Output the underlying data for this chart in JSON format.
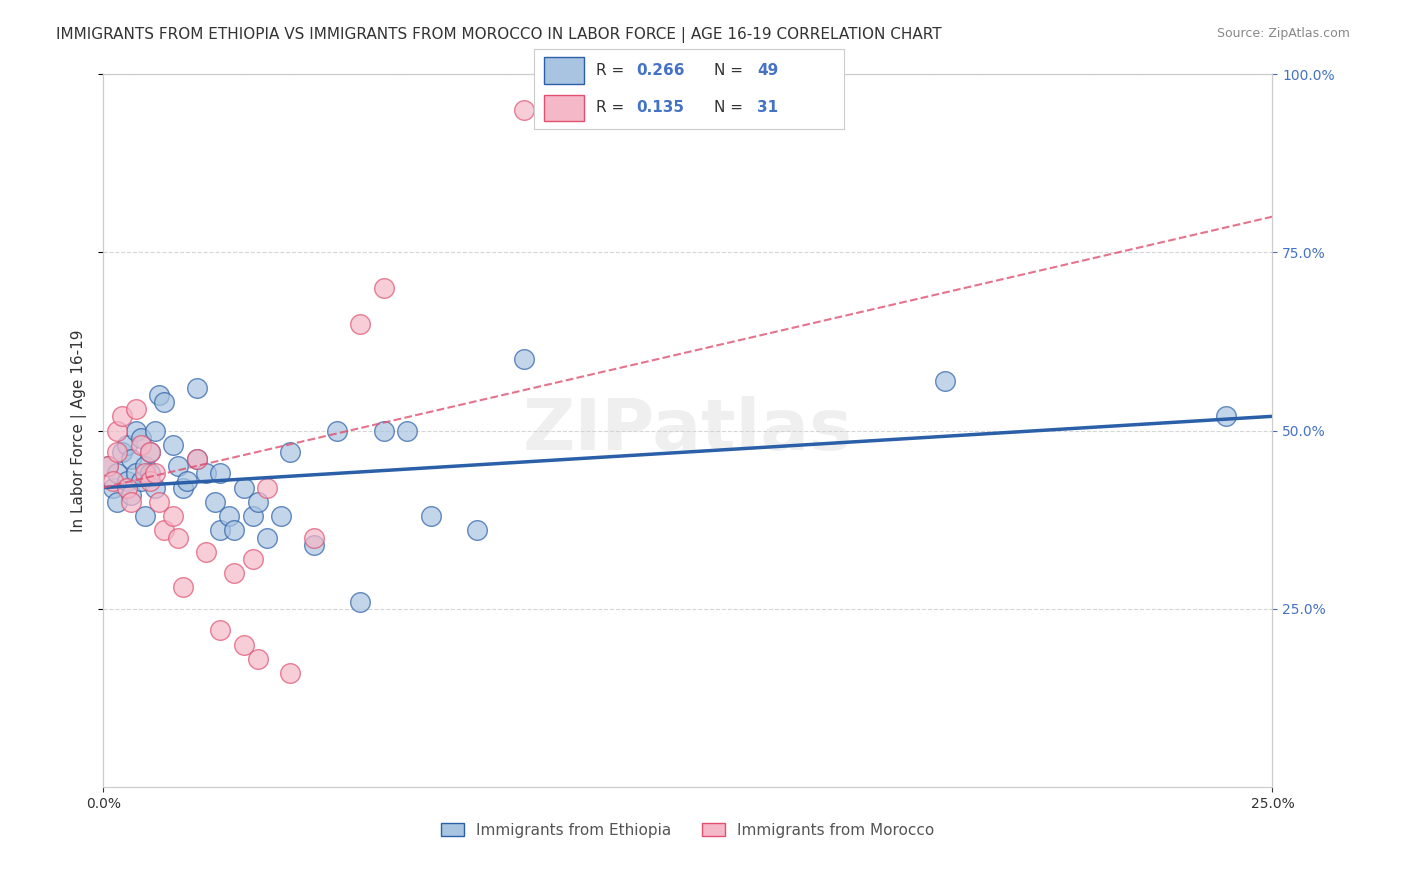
{
  "title": "IMMIGRANTS FROM ETHIOPIA VS IMMIGRANTS FROM MOROCCO IN LABOR FORCE | AGE 16-19 CORRELATION CHART",
  "source": "Source: ZipAtlas.com",
  "ylabel": "In Labor Force | Age 16-19",
  "xlim": [
    0.0,
    0.25
  ],
  "ylim": [
    0.0,
    1.0
  ],
  "xtick_labels": [
    "0.0%",
    "25.0%"
  ],
  "ytick_labels": [
    "25.0%",
    "50.0%",
    "75.0%",
    "100.0%"
  ],
  "ytick_positions": [
    0.25,
    0.5,
    0.75,
    1.0
  ],
  "xtick_positions": [
    0.0,
    0.25
  ],
  "watermark": "ZIPatlas",
  "ethiopia_color": "#a8c4e0",
  "ethiopia_color_line": "#2b5fa8",
  "morocco_color": "#f4b8c8",
  "morocco_color_line": "#e05070",
  "ethiopia_R": "0.266",
  "ethiopia_N": "49",
  "morocco_R": "0.135",
  "morocco_N": "31",
  "ethiopia_label": "Immigrants from Ethiopia",
  "morocco_label": "Immigrants from Morocco",
  "ethiopia_scatter_x": [
    0.001,
    0.002,
    0.003,
    0.003,
    0.004,
    0.005,
    0.005,
    0.006,
    0.006,
    0.007,
    0.007,
    0.008,
    0.008,
    0.009,
    0.009,
    0.01,
    0.01,
    0.011,
    0.011,
    0.012,
    0.013,
    0.015,
    0.016,
    0.017,
    0.018,
    0.02,
    0.02,
    0.022,
    0.024,
    0.025,
    0.025,
    0.027,
    0.028,
    0.03,
    0.032,
    0.033,
    0.035,
    0.038,
    0.04,
    0.045,
    0.05,
    0.055,
    0.06,
    0.065,
    0.07,
    0.08,
    0.09,
    0.18,
    0.24
  ],
  "ethiopia_scatter_y": [
    0.45,
    0.42,
    0.4,
    0.44,
    0.47,
    0.48,
    0.43,
    0.46,
    0.41,
    0.5,
    0.44,
    0.43,
    0.49,
    0.45,
    0.38,
    0.47,
    0.44,
    0.42,
    0.5,
    0.55,
    0.54,
    0.48,
    0.45,
    0.42,
    0.43,
    0.56,
    0.46,
    0.44,
    0.4,
    0.36,
    0.44,
    0.38,
    0.36,
    0.42,
    0.38,
    0.4,
    0.35,
    0.38,
    0.47,
    0.34,
    0.5,
    0.26,
    0.5,
    0.5,
    0.38,
    0.36,
    0.6,
    0.57,
    0.52
  ],
  "morocco_scatter_x": [
    0.001,
    0.002,
    0.003,
    0.003,
    0.004,
    0.005,
    0.006,
    0.007,
    0.008,
    0.009,
    0.01,
    0.01,
    0.011,
    0.012,
    0.013,
    0.015,
    0.016,
    0.017,
    0.02,
    0.022,
    0.025,
    0.028,
    0.03,
    0.032,
    0.033,
    0.035,
    0.04,
    0.045,
    0.055,
    0.06,
    0.09
  ],
  "morocco_scatter_y": [
    0.45,
    0.43,
    0.5,
    0.47,
    0.52,
    0.42,
    0.4,
    0.53,
    0.48,
    0.44,
    0.47,
    0.43,
    0.44,
    0.4,
    0.36,
    0.38,
    0.35,
    0.28,
    0.46,
    0.33,
    0.22,
    0.3,
    0.2,
    0.32,
    0.18,
    0.42,
    0.16,
    0.35,
    0.65,
    0.7,
    0.95
  ],
  "ethiopia_line_x": [
    0.0,
    0.25
  ],
  "ethiopia_line_y": [
    0.42,
    0.52
  ],
  "morocco_line_x": [
    0.0,
    0.25
  ],
  "morocco_line_y": [
    0.42,
    0.8
  ],
  "grid_color": "#cccccc",
  "background_color": "#ffffff",
  "title_fontsize": 11,
  "axis_label_fontsize": 11,
  "tick_fontsize": 10,
  "legend_fontsize": 11
}
